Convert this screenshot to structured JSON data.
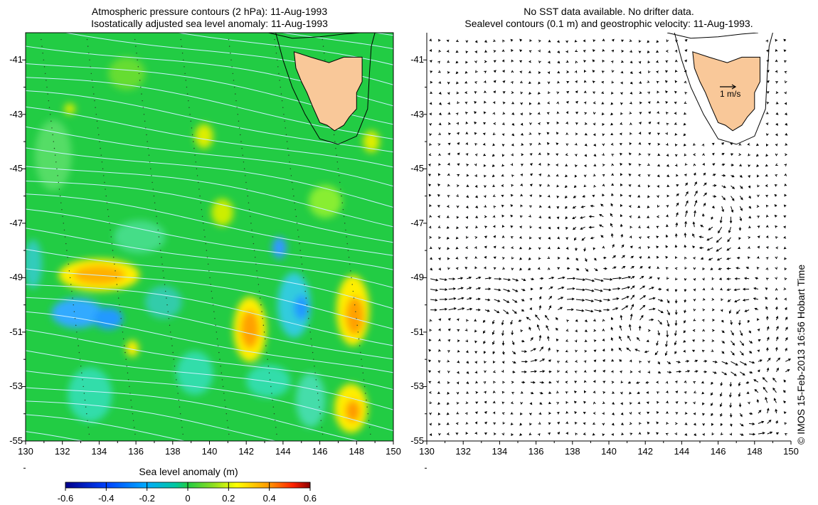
{
  "left_panel": {
    "title_line1": "Atmospheric pressure contours (2 hPa): 11-Aug-1993",
    "title_line2": "Isostatically adjusted sea level anomaly: 11-Aug-1993",
    "colorbar": {
      "title": "Sea level anomaly (m)",
      "ticks": [
        "-0.6",
        "-0.4",
        "-0.2",
        "0",
        "0.2",
        "0.4",
        "0.6"
      ],
      "range": [
        -0.6,
        0.6
      ],
      "colors": [
        "#00008b",
        "#0000ff",
        "#00aaff",
        "#00cc66",
        "#33cc33",
        "#ffff00",
        "#ff9900",
        "#ff0000",
        "#8b0000"
      ]
    }
  },
  "right_panel": {
    "title_line1": "No SST data available.  No drifter data.",
    "title_line2": "Sealevel contours (0.1 m) and geostrophic velocity: 11-Aug-1993.",
    "velocity_scale_label": "1 m/s"
  },
  "axes": {
    "lon_ticks": [
      "130",
      "132",
      "134",
      "136",
      "138",
      "140",
      "142",
      "144",
      "146",
      "148",
      "150"
    ],
    "lat_ticks": [
      "-41",
      "-43",
      "-45",
      "-47",
      "-49",
      "-51",
      "-53",
      "-55"
    ],
    "lon_range": [
      130,
      150
    ],
    "lat_range": [
      -55,
      -40
    ]
  },
  "credit": "© IMOS 15-Feb-2013 16:56 Hobart Time",
  "colors": {
    "land": "#f9c899",
    "ocean_background": "#22cc44",
    "contour_lines": "#c8f0ff"
  }
}
